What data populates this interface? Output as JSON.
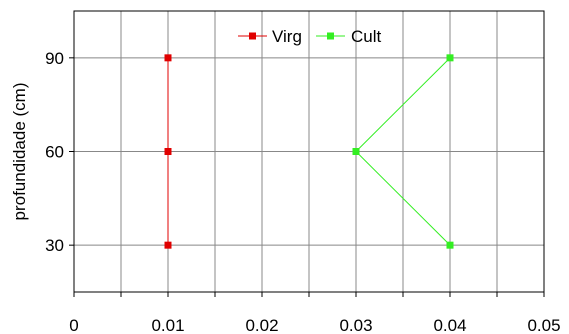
{
  "chart_data": {
    "type": "line",
    "title": "",
    "xlabel": "",
    "ylabel": "profundidade (cm)",
    "xlim": [
      0,
      0.05
    ],
    "ylim": [
      105,
      15
    ],
    "y_inverted": true,
    "x_ticks": [
      0,
      0.01,
      0.02,
      0.03,
      0.04,
      0.05
    ],
    "x_tick_labels": [
      "0",
      "0.01",
      "0.02",
      "0.03",
      "0.04",
      "0.05"
    ],
    "y_ticks": [
      30,
      60,
      90
    ],
    "y_tick_labels": [
      "30",
      "60",
      "90"
    ],
    "grid": true,
    "legend_position": "top-center",
    "series": [
      {
        "name": "Virg",
        "color": "#e00000",
        "marker": "square",
        "x": [
          0.01,
          0.01,
          0.01
        ],
        "y": [
          30,
          60,
          90
        ]
      },
      {
        "name": "Cult",
        "color": "#33ee22",
        "marker": "square",
        "x": [
          0.04,
          0.03,
          0.04
        ],
        "y": [
          30,
          60,
          90
        ]
      }
    ]
  }
}
